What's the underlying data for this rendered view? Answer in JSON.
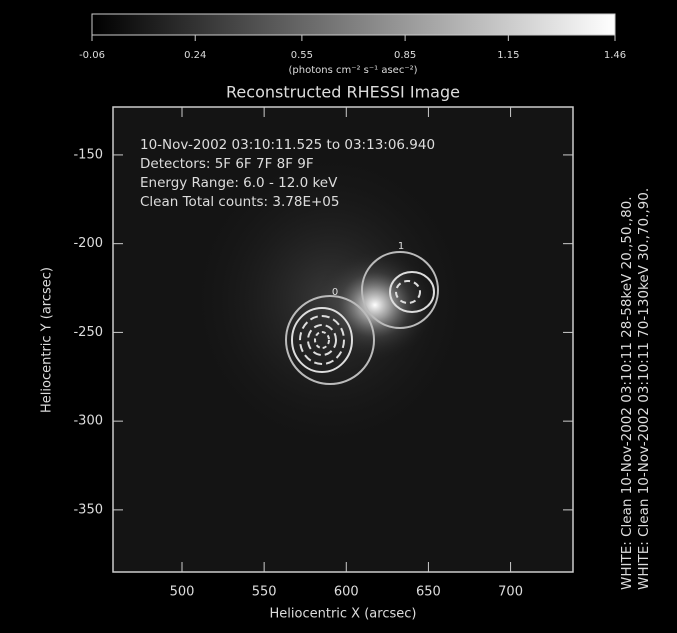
{
  "chart_data": {
    "type": "image",
    "title": "Reconstructed RHESSI Image",
    "colorbar_label": "(photons cm⁻² s⁻¹ asec⁻²)",
    "clim": [
      -0.06,
      1.46
    ],
    "cticks": [
      -0.06,
      0.24,
      0.55,
      0.85,
      1.15,
      1.46
    ],
    "x_label": "Heliocentric X (arcsec)",
    "y_label": "Heliocentric Y (arcsec)",
    "xlim": [
      458,
      738
    ],
    "ylim": [
      -385,
      -123
    ],
    "xticks": [
      500,
      550,
      600,
      650,
      700
    ],
    "yticks": [
      -150,
      -200,
      -250,
      -300,
      -350
    ],
    "annotations": [
      "10-Nov-2002 03:10:11.525 to 03:13:06.940",
      "Detectors: 5F 6F 7F 8F 9F",
      "Energy Range: 6.0 - 12.0 keV",
      "Clean     Total counts: 3.78E+05"
    ],
    "contour_labels": [
      "0",
      "1"
    ],
    "side_notes": [
      "WHITE: Clean 10-Nov-2002 03:10:11 28-58keV 20.,50.,80.",
      "WHITE: Clean 10-Nov-2002 03:10:11 70-130keV 30.,70.,90."
    ]
  }
}
